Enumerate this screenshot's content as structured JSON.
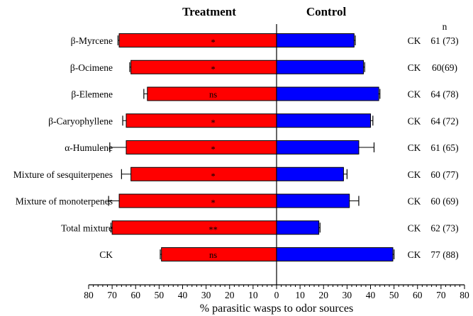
{
  "chart_data": {
    "type": "bar",
    "orientation": "horizontal-diverging",
    "left_header": "Treatment",
    "right_header": "Control",
    "n_header": "n",
    "xlabel": "% parasitic wasps to odor sources",
    "xlim": [
      -80,
      80
    ],
    "tick_labels": [
      "80",
      "70",
      "60",
      "50",
      "40",
      "30",
      "20",
      "10",
      "0",
      "10",
      "20",
      "30",
      "40",
      "50",
      "60",
      "70",
      "80"
    ],
    "categories": [
      "β-Myrcene",
      "β-Ocimene",
      "β-Elemene",
      "β-Caryophyllene",
      "α-Humulene",
      "Mixture of sesquiterpenes",
      "Mixture of monoterpenes",
      "Total mixture",
      "CK"
    ],
    "series": [
      {
        "name": "Treatment",
        "color": "#ff0000",
        "values": [
          67,
          62,
          55,
          64,
          64,
          62,
          67,
          70,
          49
        ],
        "errors": [
          0.5,
          0.5,
          1.5,
          1.5,
          7,
          4,
          4.5,
          0.5,
          0.5
        ]
      },
      {
        "name": "Control",
        "color": "#0000ff",
        "values": [
          33,
          37,
          43.5,
          40,
          35,
          28.5,
          31,
          18,
          49.5
        ],
        "errors": [
          0.5,
          0.5,
          0.5,
          1,
          6.5,
          1.5,
          4,
          0.5,
          0.5
        ]
      }
    ],
    "significance": [
      "*",
      "*",
      "ns",
      "*",
      "*",
      "*",
      "*",
      "**",
      "ns"
    ],
    "control_labels": [
      "CK",
      "CK",
      "CK",
      "CK",
      "CK",
      "CK",
      "CK",
      "CK",
      "CK"
    ],
    "n_values": [
      "61 (73)",
      "60(69)",
      "64 (78)",
      "64 (72)",
      "61 (65)",
      "60 (77)",
      "60 (69)",
      "62 (73)",
      "77 (88)"
    ]
  }
}
